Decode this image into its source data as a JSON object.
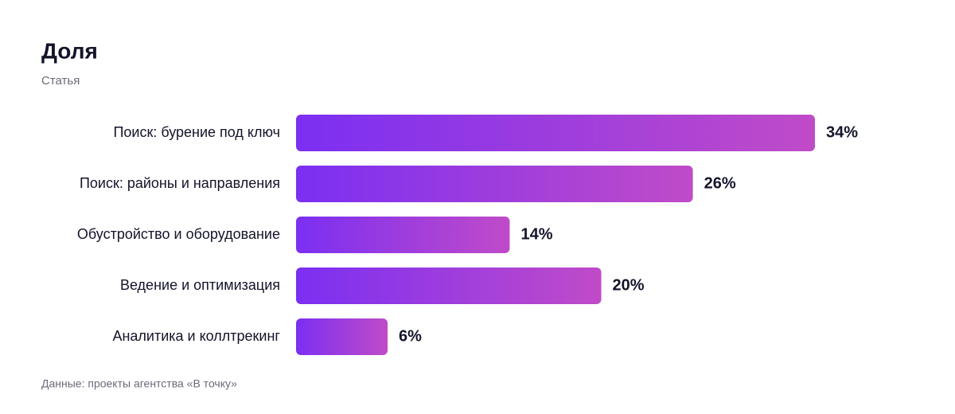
{
  "chart_data": {
    "type": "bar",
    "orientation": "horizontal",
    "title": "Доля",
    "subtitle": "Статья",
    "categories": [
      "Поиск: бурение под ключ",
      "Поиск: районы и направления",
      "Обустройство и оборудование",
      "Ведение и оптимизация",
      "Аналитика и коллтрекинг"
    ],
    "values": [
      34,
      26,
      14,
      20,
      6
    ],
    "value_labels": [
      "34%",
      "26%",
      "14%",
      "20%",
      "6%"
    ],
    "gradient": [
      "#7b2ff2",
      "#c04bc8"
    ],
    "source": "Данные: проекты агентства «В точку»"
  }
}
